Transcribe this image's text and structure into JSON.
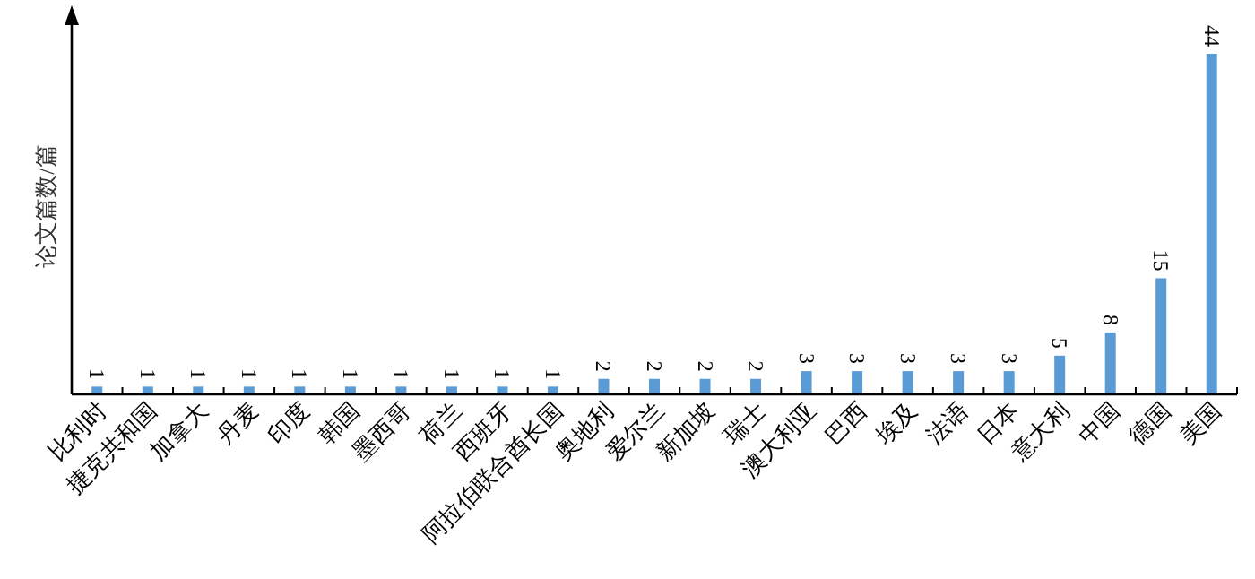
{
  "chart_data": {
    "type": "bar",
    "ylabel": "论文篇数/篇",
    "categories": [
      "比利时",
      "捷克共和国",
      "加拿大",
      "丹麦",
      "印度",
      "韩国",
      "墨西哥",
      "荷兰",
      "西班牙",
      "阿拉伯联合酋长国",
      "奥地利",
      "爱尔兰",
      "新加坡",
      "瑞士",
      "澳大利亚",
      "巴西",
      "埃及",
      "法语",
      "日本",
      "意大利",
      "中国",
      "德国",
      "美国"
    ],
    "values": [
      1,
      1,
      1,
      1,
      1,
      1,
      1,
      1,
      1,
      1,
      2,
      2,
      2,
      2,
      3,
      3,
      3,
      3,
      3,
      5,
      8,
      15,
      44
    ],
    "color": "#5b9bd5",
    "data_labels": true
  }
}
